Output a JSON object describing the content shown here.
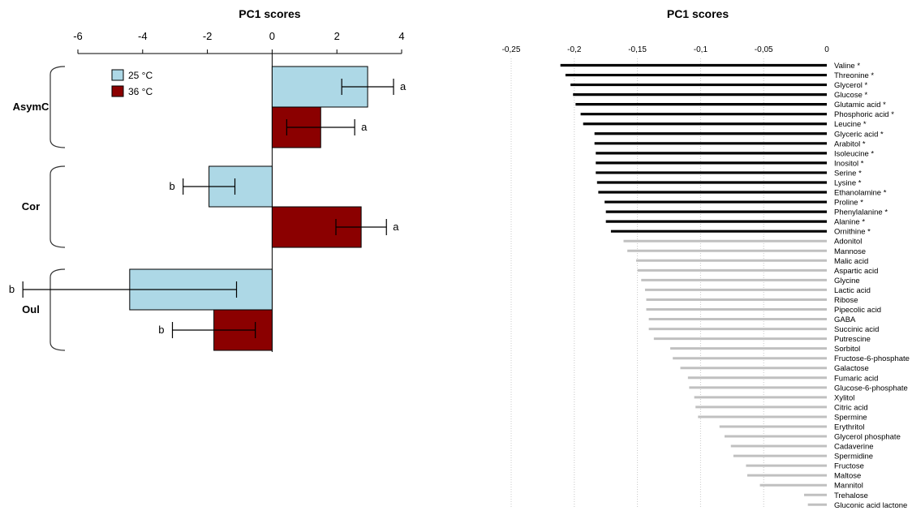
{
  "chart_data": [
    {
      "type": "bar",
      "orientation": "horizontal",
      "title": "PC1 scores",
      "xlim": [
        -6,
        4
      ],
      "x_ticks": [
        "-6",
        "-4",
        "-2",
        "0",
        "2",
        "4"
      ],
      "x_tick_values": [
        -6,
        -4,
        -2,
        0,
        2,
        4
      ],
      "axis_position": "top",
      "grid": false,
      "legend_position": "top-left",
      "groups": [
        "AsymC",
        "Cor",
        "Oul"
      ],
      "series": [
        {
          "name": "25 °C",
          "color": "#add8e6",
          "values": [
            2.95,
            -1.95,
            -4.4
          ],
          "error": [
            0.8,
            0.8,
            3.3
          ],
          "letters": [
            "a",
            "b",
            "b"
          ]
        },
        {
          "name": "36 °C",
          "color": "#8b0000",
          "values": [
            1.5,
            2.75,
            -1.8
          ],
          "error": [
            1.05,
            0.78,
            1.28
          ],
          "letters": [
            "a",
            "a",
            "b"
          ]
        }
      ]
    },
    {
      "type": "bar",
      "orientation": "horizontal",
      "title": "PC1 scores",
      "xlim": [
        -0.25,
        0
      ],
      "x_ticks": [
        "-0,25",
        "-0,2",
        "-0,15",
        "-0,1",
        "-0,05",
        "0"
      ],
      "x_tick_values": [
        -0.25,
        -0.2,
        -0.15,
        -0.1,
        -0.05,
        0
      ],
      "axis_position": "top",
      "grid": true,
      "colors": {
        "significant": "#000000",
        "other": "#c0c0c0"
      },
      "labels": [
        "Valine *",
        "Threonine *",
        "Glycerol *",
        "Glucose *",
        "Glutamic acid *",
        "Phosphoric acid *",
        "Leucine *",
        "Glyceric acid *",
        "Arabitol *",
        "Isoleucine *",
        "Inositol *",
        "Serine *",
        "Lysine *",
        "Ethanolamine *",
        "Proline *",
        "Phenylalanine *",
        "Alanine *",
        "Ornithine *",
        "Adonitol",
        "Mannose",
        "Malic acid",
        "Aspartic acid",
        "Glycine",
        "Lactic acid",
        "Ribose",
        "Pipecolic acid",
        "GABA",
        "Succinic acid",
        "Putrescine",
        "Sorbitol",
        "Fructose-6-phosphate",
        "Galactose",
        "Fumaric acid",
        "Glucose-6-phosphate",
        "Xylitol",
        "Citric acid",
        "Spermine",
        "Erythritol",
        "Glycerol phosphate",
        "Cadaverine",
        "Spermidine",
        "Fructose",
        "Maltose",
        "Mannitol",
        "Trehalose",
        "Gluconic acid lactone"
      ],
      "values": [
        -0.211,
        -0.207,
        -0.203,
        -0.201,
        -0.199,
        -0.195,
        -0.193,
        -0.184,
        -0.184,
        -0.183,
        -0.183,
        -0.183,
        -0.182,
        -0.181,
        -0.176,
        -0.175,
        -0.175,
        -0.171,
        -0.161,
        -0.158,
        -0.151,
        -0.15,
        -0.147,
        -0.144,
        -0.143,
        -0.143,
        -0.141,
        -0.141,
        -0.137,
        -0.124,
        -0.122,
        -0.116,
        -0.11,
        -0.109,
        -0.105,
        -0.104,
        -0.102,
        -0.085,
        -0.081,
        -0.076,
        -0.074,
        -0.064,
        -0.063,
        -0.053,
        -0.018,
        -0.015
      ],
      "significant_count": 18
    }
  ],
  "groups_labels": {
    "AsymC": "AsymC",
    "Cor": "Cor",
    "Oul": "Oul"
  }
}
